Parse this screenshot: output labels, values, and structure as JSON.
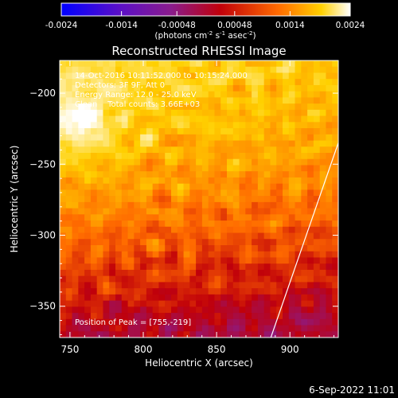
{
  "colorbar": {
    "ticks": [
      "-0.0024",
      "-0.0014",
      "-0.00048",
      "0.00048",
      "0.0014",
      "0.0024"
    ],
    "tick_values": [
      -0.0024,
      -0.0014,
      -0.00048,
      0.00048,
      0.0014,
      0.0024
    ],
    "range": [
      -0.0024,
      0.0024
    ],
    "unit_label": "(photons cm",
    "unit_exp1": "-2",
    "unit_mid": " s",
    "unit_exp2": "-1",
    "unit_end": " asec",
    "unit_exp3": "-2",
    "unit_close": ")",
    "colors": [
      "#0000ff",
      "#5a0fc8",
      "#8a1c8c",
      "#c0000a",
      "#ff6a00",
      "#ffd000",
      "#ffffff"
    ]
  },
  "chart_data": {
    "type": "heatmap",
    "title": "Reconstructed RHESSI Image",
    "xlabel": "Heliocentric X (arcsec)",
    "ylabel": "Heliocentric Y (arcsec)",
    "xlim": [
      743,
      933
    ],
    "ylim": [
      -372,
      -177
    ],
    "xticks": [
      750,
      800,
      850,
      900
    ],
    "yticks": [
      -200,
      -250,
      -300,
      -350
    ],
    "xtick_labels": [
      "750",
      "800",
      "850",
      "900"
    ],
    "ytick_labels": [
      "−200",
      "−250",
      "−300",
      "−350"
    ],
    "peak": [
      755,
      -219
    ],
    "limb_line": [
      [
        887,
        -372
      ],
      [
        933,
        -235
      ]
    ],
    "annotations": {
      "time": "14-Oct-2016 10:11:52.000 to 10:15:24.000",
      "detectors": "Detectors: 3F 9F, Att 0",
      "energy": "Energy Range: 12.0 - 25.0 keV",
      "clean": "Clean    Total counts: 3.66E+03",
      "peak_text": "Position of Peak = [755,-219]"
    },
    "grid": false
  },
  "footer": {
    "date": "6-Sep-2022 11:01"
  }
}
